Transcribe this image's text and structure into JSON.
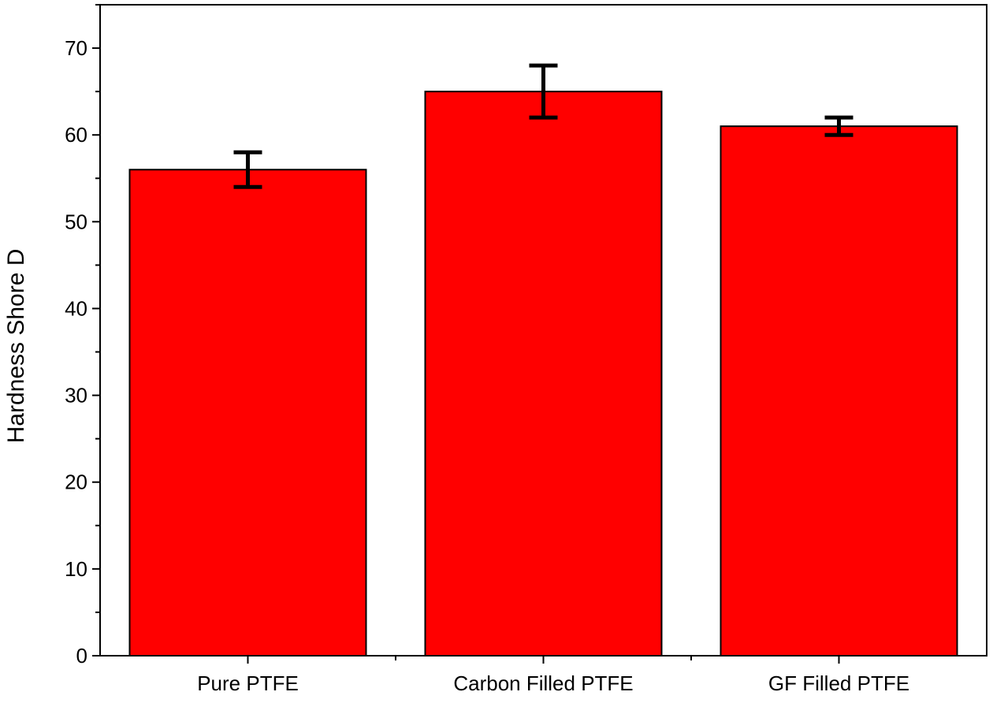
{
  "chart_data": {
    "type": "bar",
    "title": "",
    "xlabel": "",
    "ylabel": "Hardness Shore D",
    "categories": [
      "Pure PTFE",
      "Carbon Filled PTFE",
      "GF Filled PTFE"
    ],
    "values": [
      56,
      65,
      61
    ],
    "error_low": [
      54,
      62,
      60
    ],
    "error_high": [
      58,
      68,
      62
    ],
    "ylim": [
      0,
      75
    ],
    "yticks": [
      0,
      10,
      20,
      30,
      40,
      50,
      60,
      70
    ],
    "grid": false,
    "legend": "none",
    "colors": {
      "bar": "#ff0000",
      "bar_edge": "#000000",
      "error_bar": "#000000",
      "axis": "#000000"
    }
  }
}
